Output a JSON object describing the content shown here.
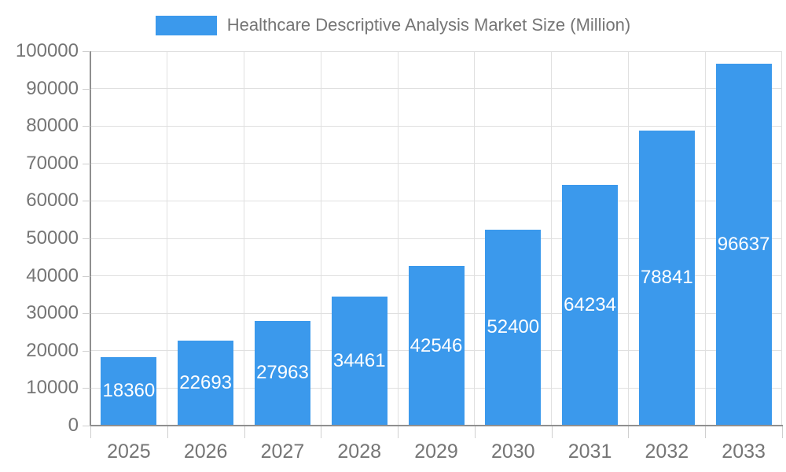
{
  "chart_data": {
    "type": "bar",
    "title": "Healthcare Descriptive Analysis Market Size (Million)",
    "categories": [
      "2025",
      "2026",
      "2027",
      "2028",
      "2029",
      "2030",
      "2031",
      "2032",
      "2033"
    ],
    "values": [
      18360,
      22693,
      27963,
      34461,
      42546,
      52400,
      64234,
      78841,
      96637
    ],
    "series": [
      {
        "name": "Healthcare Descriptive Analysis Market Size (Million)",
        "values": [
          18360,
          22693,
          27963,
          34461,
          42546,
          52400,
          64234,
          78841,
          96637
        ]
      }
    ],
    "xlabel": "",
    "ylabel": "",
    "ylim": [
      0,
      100000
    ],
    "yticks": [
      0,
      10000,
      20000,
      30000,
      40000,
      50000,
      60000,
      70000,
      80000,
      90000,
      100000
    ],
    "grid": true,
    "legend_position": "top",
    "value_labels": {
      "position": "center-inside",
      "color": "#FFFFFF"
    },
    "colors": {
      "bar": "#3B99EC",
      "axis_text": "#757575",
      "legend_text": "#757575",
      "grid": "#E0E0E0",
      "axis_line": "#8F8F8F",
      "tick": "#CFCFCF",
      "value_label": "#FFFFFF",
      "background": "#FFFFFF"
    }
  }
}
